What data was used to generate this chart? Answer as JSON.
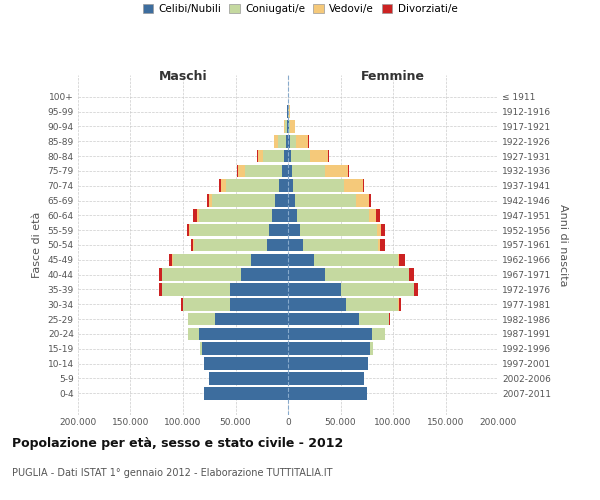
{
  "age_groups": [
    "0-4",
    "5-9",
    "10-14",
    "15-19",
    "20-24",
    "25-29",
    "30-34",
    "35-39",
    "40-44",
    "45-49",
    "50-54",
    "55-59",
    "60-64",
    "65-69",
    "70-74",
    "75-79",
    "80-84",
    "85-89",
    "90-94",
    "95-99",
    "100+"
  ],
  "birth_years": [
    "2007-2011",
    "2002-2006",
    "1997-2001",
    "1992-1996",
    "1987-1991",
    "1982-1986",
    "1977-1981",
    "1972-1976",
    "1967-1971",
    "1962-1966",
    "1957-1961",
    "1952-1956",
    "1947-1951",
    "1942-1946",
    "1937-1941",
    "1932-1936",
    "1927-1931",
    "1922-1926",
    "1917-1921",
    "1912-1916",
    "≤ 1911"
  ],
  "male_celibi": [
    80000,
    75000,
    80000,
    82000,
    85000,
    70000,
    55000,
    55000,
    45000,
    35000,
    20000,
    18000,
    15000,
    12000,
    9000,
    6000,
    4000,
    2000,
    1000,
    500,
    200
  ],
  "male_coniugati": [
    50,
    100,
    200,
    2000,
    10000,
    25000,
    45000,
    65000,
    75000,
    75000,
    70000,
    75000,
    70000,
    60000,
    50000,
    35000,
    20000,
    8000,
    2000,
    400,
    100
  ],
  "male_vedovi": [
    50,
    50,
    50,
    100,
    200,
    200,
    200,
    200,
    200,
    200,
    500,
    1000,
    2000,
    3000,
    5000,
    7000,
    5000,
    3000,
    1000,
    200,
    50
  ],
  "male_divorziati": [
    10,
    10,
    10,
    50,
    200,
    500,
    1500,
    2500,
    3000,
    3500,
    2000,
    2500,
    3000,
    2500,
    1500,
    500,
    200,
    100,
    50,
    20,
    5
  ],
  "female_celibi": [
    75000,
    72000,
    76000,
    78000,
    80000,
    68000,
    55000,
    50000,
    35000,
    25000,
    14000,
    11000,
    9000,
    7000,
    5000,
    3500,
    2500,
    1500,
    800,
    300,
    200
  ],
  "female_coniugati": [
    80,
    150,
    300,
    2500,
    12000,
    28000,
    50000,
    70000,
    80000,
    80000,
    72000,
    74000,
    68000,
    58000,
    48000,
    32000,
    18000,
    6000,
    1500,
    200,
    50
  ],
  "female_vedovi": [
    50,
    50,
    80,
    150,
    300,
    300,
    300,
    400,
    500,
    1000,
    2000,
    4000,
    7000,
    12000,
    18000,
    22000,
    18000,
    12000,
    4000,
    1000,
    200
  ],
  "female_divorziati": [
    10,
    10,
    20,
    80,
    300,
    700,
    2000,
    3500,
    4500,
    5000,
    4000,
    3500,
    3500,
    2500,
    1500,
    800,
    500,
    300,
    100,
    20,
    5
  ],
  "color_celibi": "#3d6d9e",
  "color_coniugati": "#c5d9a0",
  "color_vedovi": "#f5c97a",
  "color_divorziati": "#cc2222",
  "title": "Popolazione per età, sesso e stato civile - 2012",
  "subtitle": "PUGLIA - Dati ISTAT 1° gennaio 2012 - Elaborazione TUTTITALIA.IT",
  "label_maschi": "Maschi",
  "label_femmine": "Femmine",
  "ylabel_left": "Fasce di età",
  "ylabel_right": "Anni di nascita",
  "xlim": 200000,
  "xtick_vals": [
    -200000,
    -150000,
    -100000,
    -50000,
    0,
    50000,
    100000,
    150000,
    200000
  ],
  "xtick_labels": [
    "200.000",
    "150.000",
    "100.000",
    "50.000",
    "0",
    "50.000",
    "100.000",
    "150.000",
    "200.000"
  ],
  "background_color": "#ffffff",
  "grid_color": "#cccccc",
  "legend_labels": [
    "Celibi/Nubili",
    "Coniugati/e",
    "Vedovi/e",
    "Divorziati/e"
  ]
}
